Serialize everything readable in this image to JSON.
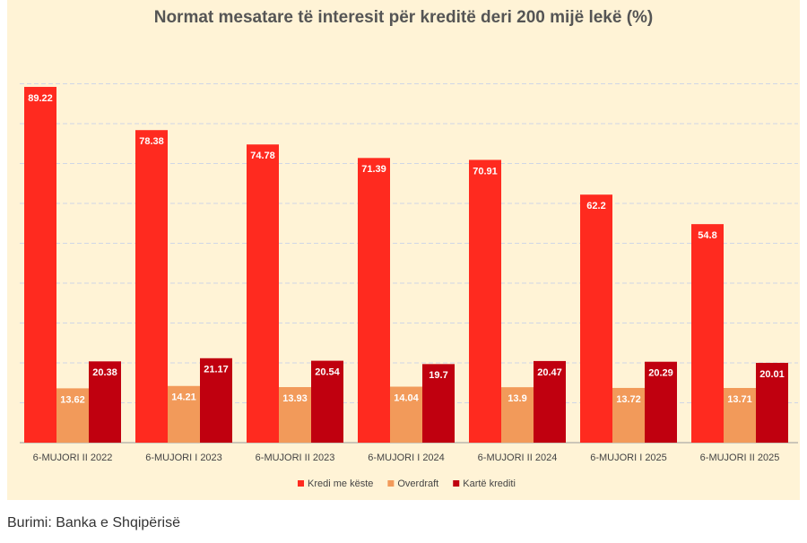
{
  "chart_data": {
    "type": "bar",
    "title": "Normat mesatare të interesit për kreditë deri 200 mijë lekë (%)",
    "categories": [
      "6-MUJORI II 2022",
      "6-MUJORI I 2023",
      "6-MUJORI II 2023",
      "6-MUJORI I 2024",
      "6-MUJORI II 2024",
      "6-MUJORI I 2025",
      "6-MUJORI II 2025"
    ],
    "series": [
      {
        "name": "Kredi me këste",
        "color": "#ff2a1f",
        "values": [
          89.22,
          78.38,
          74.78,
          71.39,
          70.91,
          62.2,
          54.8
        ]
      },
      {
        "name": "Overdraft",
        "color": "#f29a5a",
        "values": [
          13.62,
          14.21,
          13.93,
          14.04,
          13.9,
          13.72,
          13.71
        ]
      },
      {
        "name": "Kartë krediti",
        "color": "#c0000f",
        "values": [
          20.38,
          21.17,
          20.54,
          19.7,
          20.47,
          20.29,
          20.01
        ]
      }
    ],
    "ylim": [
      0,
      100
    ],
    "yticks": [
      0,
      10,
      20,
      30,
      40,
      50,
      60,
      70,
      80,
      90
    ],
    "grid": true,
    "legend": "bottom"
  },
  "source": "Burimi: Banka e Shqipërisë"
}
